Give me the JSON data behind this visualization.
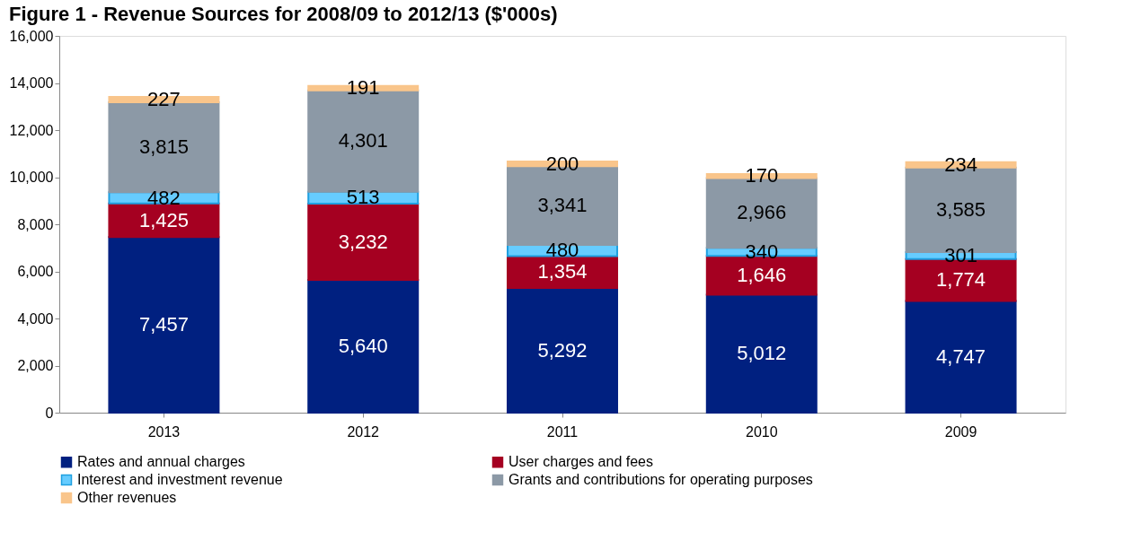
{
  "chart_data": {
    "type": "bar",
    "title": "Figure 1 - Revenue Sources for 2008/09 to 2012/13 ($'000s)",
    "categories": [
      "2013",
      "2012",
      "2011",
      "2010",
      "2009"
    ],
    "stacked": true,
    "ylim": [
      0,
      16000
    ],
    "yticks": [
      {
        "value": 0,
        "label": "0"
      },
      {
        "value": 2000,
        "label": "2,000"
      },
      {
        "value": 4000,
        "label": "4,000"
      },
      {
        "value": 6000,
        "label": "6,000"
      },
      {
        "value": 8000,
        "label": "8,000"
      },
      {
        "value": 10000,
        "label": "10,000"
      },
      {
        "value": 12000,
        "label": "12,000"
      },
      {
        "value": 14000,
        "label": "14,000"
      },
      {
        "value": 16000,
        "label": "16,000"
      }
    ],
    "grid": false,
    "legend": "bottom",
    "series": [
      {
        "name": "Rates and annual charges",
        "color": "#002080",
        "values": [
          7457,
          5640,
          5292,
          5012,
          4747
        ],
        "value_labels": [
          "7,457",
          "5,640",
          "5,292",
          "5,012",
          "4,747"
        ]
      },
      {
        "name": "User charges and fees",
        "color": "#a50021",
        "values": [
          1425,
          3232,
          1354,
          1646,
          1774
        ],
        "value_labels": [
          "1,425",
          "3,232",
          "1,354",
          "1,646",
          "1,774"
        ]
      },
      {
        "name": "Interest and investment revenue",
        "color": "#66ccff",
        "values": [
          482,
          513,
          480,
          340,
          301
        ],
        "value_labels": [
          "482",
          "513",
          "480",
          "340",
          "301"
        ]
      },
      {
        "name": "Grants and contributions for operating purposes",
        "color": "#8c99a6",
        "values": [
          3815,
          4301,
          3341,
          2966,
          3585
        ],
        "value_labels": [
          "3,815",
          "4,301",
          "3,341",
          "2,966",
          "3,585"
        ]
      },
      {
        "name": "Other revenues",
        "color": "#f9c58b",
        "values": [
          227,
          191,
          200,
          170,
          234
        ],
        "value_labels": [
          "227",
          "191",
          "200",
          "170",
          "234"
        ]
      }
    ]
  }
}
